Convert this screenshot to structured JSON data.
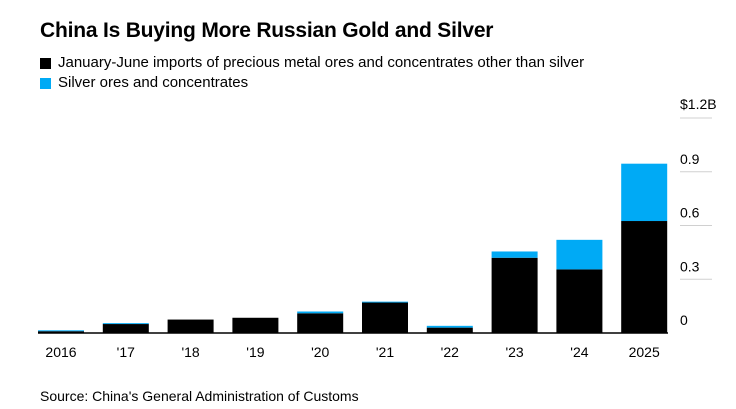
{
  "header": {
    "title": "China Is Buying More Russian Gold and Silver"
  },
  "legend": [
    {
      "label": "January-June imports of precious metal ores and concentrates other than silver",
      "color": "#000000"
    },
    {
      "label": "Silver ores and concentrates",
      "color": "#00aaf5"
    }
  ],
  "source": "Source: China's General Administration of Customs",
  "chart_data": {
    "type": "bar",
    "stacked": true,
    "title": "China Is Buying More Russian Gold and Silver",
    "categories": [
      "2016",
      "'17",
      "'18",
      "'19",
      "'20",
      "'21",
      "'22",
      "'23",
      "'24",
      "2025"
    ],
    "series": [
      {
        "name": "January-June imports of precious metal ores and concentrates other than silver",
        "color": "#000000",
        "values": [
          0.01,
          0.05,
          0.075,
          0.085,
          0.11,
          0.17,
          0.03,
          0.42,
          0.355,
          0.625
        ]
      },
      {
        "name": "Silver ores and concentrates",
        "color": "#00aaf5",
        "values": [
          0.005,
          0.005,
          0.0,
          0.0,
          0.01,
          0.005,
          0.01,
          0.035,
          0.165,
          0.32
        ]
      }
    ],
    "y_axis": {
      "position": "right",
      "min": 0,
      "max": 1.2,
      "ticks": [
        {
          "value": 0,
          "label": "0"
        },
        {
          "value": 0.3,
          "label": "0.3"
        },
        {
          "value": 0.6,
          "label": "0.6"
        },
        {
          "value": 0.9,
          "label": "0.9"
        },
        {
          "value": 1.2,
          "label": "$1.2B"
        }
      ]
    },
    "xlabel": "",
    "ylabel": ""
  }
}
